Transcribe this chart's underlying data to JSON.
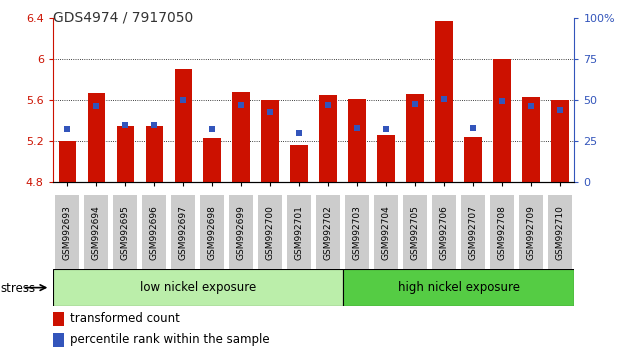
{
  "title": "GDS4974 / 7917050",
  "categories": [
    "GSM992693",
    "GSM992694",
    "GSM992695",
    "GSM992696",
    "GSM992697",
    "GSM992698",
    "GSM992699",
    "GSM992700",
    "GSM992701",
    "GSM992702",
    "GSM992703",
    "GSM992704",
    "GSM992705",
    "GSM992706",
    "GSM992707",
    "GSM992708",
    "GSM992709",
    "GSM992710"
  ],
  "red_bar_values": [
    5.2,
    5.67,
    5.35,
    5.35,
    5.9,
    5.23,
    5.68,
    5.6,
    5.16,
    5.65,
    5.61,
    5.26,
    5.66,
    6.37,
    5.24,
    6.0,
    5.63,
    5.6
  ],
  "blue_marker_values": [
    5.32,
    5.54,
    5.36,
    5.36,
    5.6,
    5.32,
    5.55,
    5.48,
    5.28,
    5.55,
    5.33,
    5.32,
    5.56,
    5.61,
    5.33,
    5.59,
    5.54,
    5.5
  ],
  "bar_base": 4.8,
  "ylim_left": [
    4.8,
    6.4
  ],
  "ylim_right": [
    0,
    100
  ],
  "yticks_left": [
    4.8,
    5.2,
    5.6,
    6.0,
    6.4
  ],
  "yticks_right": [
    0,
    25,
    50,
    75,
    100
  ],
  "ytick_labels_left": [
    "4.8",
    "5.2",
    "5.6",
    "6",
    "6.4"
  ],
  "ytick_labels_right": [
    "0",
    "25",
    "50",
    "75",
    "100%"
  ],
  "grid_lines": [
    5.2,
    5.6,
    6.0
  ],
  "bar_color": "#cc1100",
  "blue_color": "#3355bb",
  "low_group_label": "low nickel exposure",
  "high_group_label": "high nickel exposure",
  "low_group_count": 10,
  "high_group_count": 8,
  "stress_label": "stress",
  "legend_red": "transformed count",
  "legend_blue": "percentile rank within the sample",
  "low_group_color": "#bbeeaa",
  "high_group_color": "#55cc44",
  "title_color": "#333333",
  "xtick_bg_color": "#cccccc"
}
